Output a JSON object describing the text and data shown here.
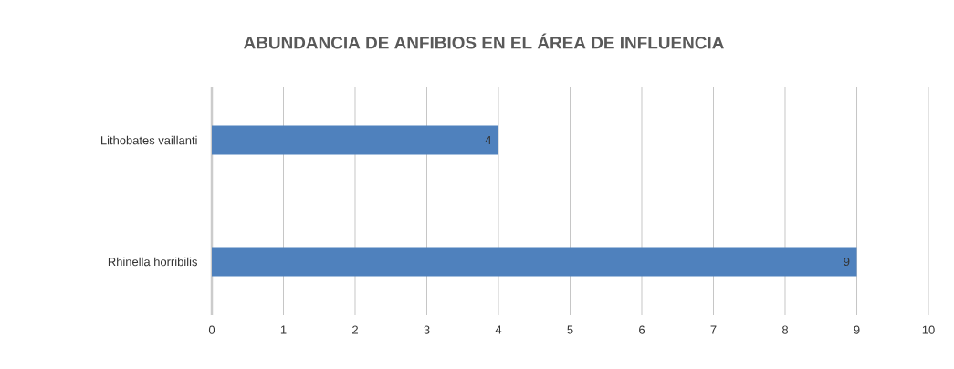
{
  "chart_data": {
    "type": "bar",
    "orientation": "horizontal",
    "title": "ABUNDANCIA DE ANFIBIOS EN EL ÁREA DE INFLUENCIA",
    "categories": [
      "Lithobates vaillanti",
      "Rhinella horribilis"
    ],
    "values": [
      4,
      9
    ],
    "color": "#4f81bd",
    "xlim": [
      0,
      10
    ],
    "xticks": [
      0,
      1,
      2,
      3,
      4,
      5,
      6,
      7,
      8,
      9,
      10
    ],
    "grid": "x",
    "data_labels": true
  }
}
